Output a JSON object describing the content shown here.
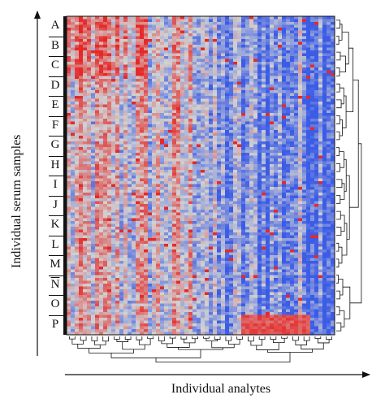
{
  "chart_data": {
    "type": "heatmap",
    "ylabel": "Individual serum samples",
    "xlabel": "Individual analytes",
    "groups": [
      "A",
      "B",
      "C",
      "D",
      "E",
      "F",
      "G",
      "H",
      "I",
      "J",
      "K",
      "L",
      "M",
      "N",
      "O",
      "P"
    ],
    "overlined_groups": [
      "N"
    ],
    "colors": {
      "low": "#3b5ce6",
      "mid": "#d2d2d2",
      "high": "#e62828"
    },
    "dendrograms": [
      "rows",
      "columns"
    ],
    "legend": "none",
    "grid": false
  }
}
